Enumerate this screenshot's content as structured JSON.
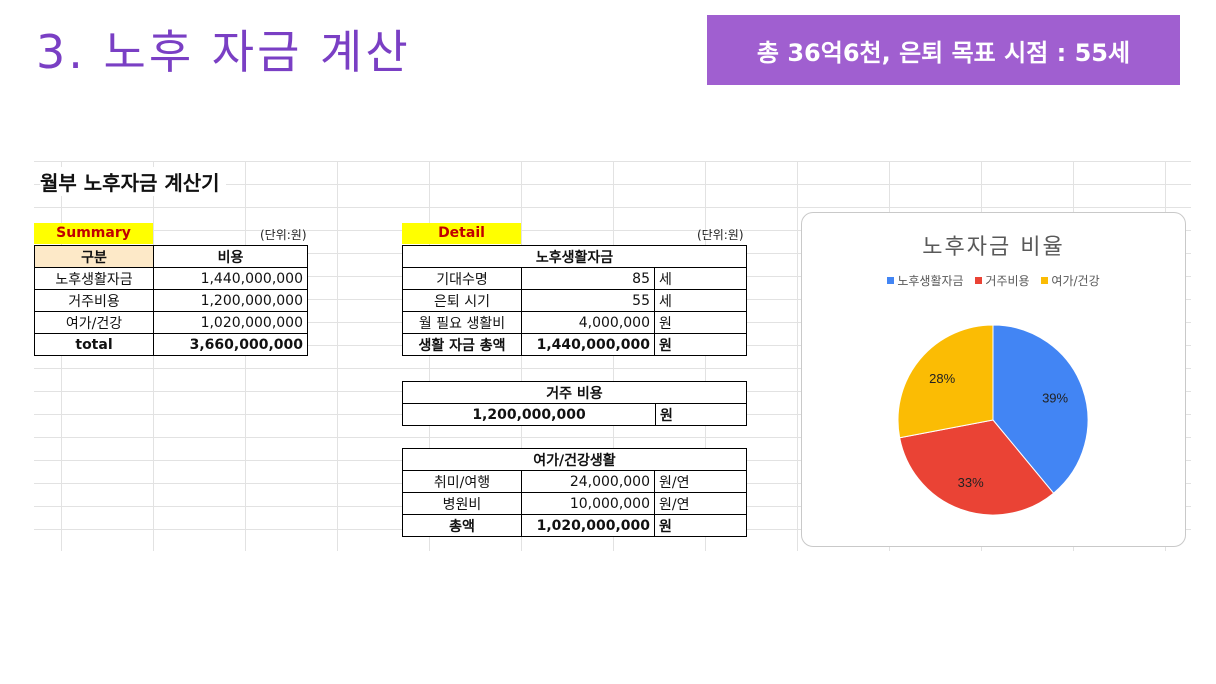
{
  "slide": {
    "title": "3. 노후 자금 계산",
    "badge": "총 36억6천, 은퇴 목표 시점 : 55세"
  },
  "sheet": {
    "title": "월부 노후자금 계산기",
    "summary": {
      "tag": "Summary",
      "unit": "(단위:원)",
      "headers": [
        "구분",
        "비용"
      ],
      "rows": [
        {
          "label": "노후생활자금",
          "value": "1,440,000,000"
        },
        {
          "label": "거주비용",
          "value": "1,200,000,000"
        },
        {
          "label": "여가/건강",
          "value": "1,020,000,000"
        }
      ],
      "total": {
        "label": "total",
        "value": "3,660,000,000"
      }
    },
    "detail": {
      "tag": "Detail",
      "unit": "(단위:원)",
      "living": {
        "header": "노후생활자금",
        "rows": [
          {
            "label": "기대수명",
            "value": "85",
            "unit": "세"
          },
          {
            "label": "은퇴 시기",
            "value": "55",
            "unit": "세"
          },
          {
            "label": "월 필요 생활비",
            "value": "4,000,000",
            "unit": "원"
          }
        ],
        "total": {
          "label": "생활 자금 총액",
          "value": "1,440,000,000",
          "unit": "원"
        }
      },
      "housing": {
        "header": "거주 비용",
        "value": "1,200,000,000",
        "unit": "원"
      },
      "leisure": {
        "header": "여가/건강생활",
        "rows": [
          {
            "label": "취미/여행",
            "value": "24,000,000",
            "unit": "원/연"
          },
          {
            "label": "병원비",
            "value": "10,000,000",
            "unit": "원/연"
          }
        ],
        "total": {
          "label": "총액",
          "value": "1,020,000,000",
          "unit": "원"
        }
      }
    }
  },
  "chart_data": {
    "type": "pie",
    "title": "노후자금 비율",
    "legend_position": "top",
    "categories": [
      "노후생활자금",
      "거주비용",
      "여가/건강"
    ],
    "values": [
      39,
      33,
      28
    ],
    "labels": [
      "39%",
      "33%",
      "28%"
    ],
    "colors": [
      "#4285f4",
      "#ea4335",
      "#fbbc04"
    ]
  }
}
